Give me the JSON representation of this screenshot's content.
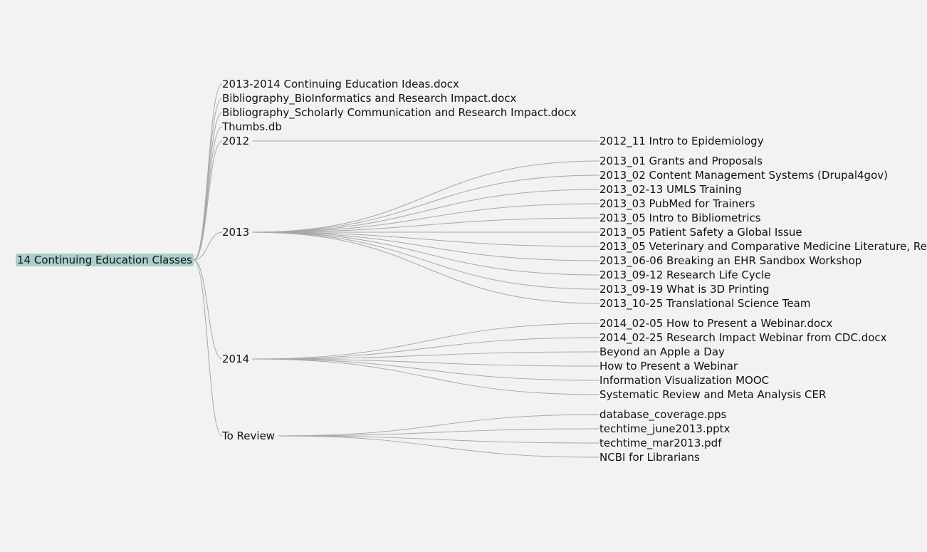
{
  "tree": {
    "root": {
      "label": "14 Continuing Education Classes",
      "highlight_color": "#a9cfcb"
    },
    "children": [
      {
        "label": "2013-2014 Continuing Education Ideas.docx"
      },
      {
        "label": "Bibliography_BioInformatics and Research Impact.docx"
      },
      {
        "label": "Bibliography_Scholarly Communication and Research Impact.docx"
      },
      {
        "label": "Thumbs.db"
      },
      {
        "label": "2012",
        "children": [
          {
            "label": "2012_11 Intro to Epidemiology"
          }
        ]
      },
      {
        "label": "2013",
        "children": [
          {
            "label": "2013_01 Grants and Proposals"
          },
          {
            "label": "2013_02 Content Management Systems (Drupal4gov)"
          },
          {
            "label": "2013_02-13 UMLS Training"
          },
          {
            "label": "2013_03 PubMed for Trainers"
          },
          {
            "label": "2013_05 Intro to Bibliometrics"
          },
          {
            "label": "2013_05 Patient Safety a Global Issue"
          },
          {
            "label": "2013_05 Veterinary and Comparative Medicine Literature, Re"
          },
          {
            "label": "2013_06-06 Breaking an EHR Sandbox Workshop"
          },
          {
            "label": "2013_09-12 Research Life Cycle"
          },
          {
            "label": "2013_09-19 What is 3D Printing"
          },
          {
            "label": "2013_10-25 Translational Science Team"
          }
        ]
      },
      {
        "label": "2014",
        "children": [
          {
            "label": "2014_02-05 How to Present a Webinar.docx"
          },
          {
            "label": "2014_02-25 Research Impact Webinar from CDC.docx"
          },
          {
            "label": "Beyond an Apple a Day"
          },
          {
            "label": "How to Present a Webinar"
          },
          {
            "label": "Information Visualization MOOC"
          },
          {
            "label": "Systematic Review and Meta Analysis CER"
          }
        ]
      },
      {
        "label": "To Review",
        "children": [
          {
            "label": "database_coverage.pps"
          },
          {
            "label": "techtime_june2013.pptx"
          },
          {
            "label": "techtime_mar2013.pdf"
          },
          {
            "label": "NCBI for Librarians"
          }
        ]
      }
    ]
  },
  "colors": {
    "background": "#f2f2f2",
    "link": "#a8a8a8"
  }
}
